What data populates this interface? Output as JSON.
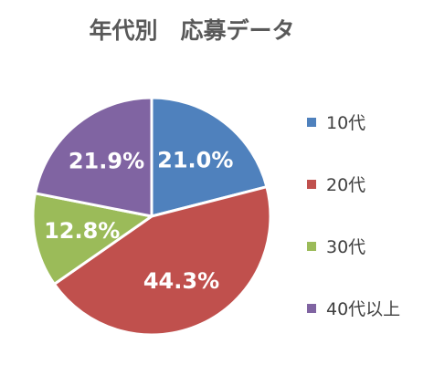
{
  "chart_data": {
    "type": "pie",
    "title": "年代別　応募データ",
    "categories": [
      "10代",
      "20代",
      "30代",
      "40代以上"
    ],
    "values": [
      21.0,
      44.3,
      12.8,
      21.9
    ],
    "labels": [
      "21.0%",
      "44.3%",
      "12.8%",
      "21.9%"
    ],
    "colors": [
      "#4f81bd",
      "#c0504d",
      "#9bbb59",
      "#8064a2"
    ],
    "legend": "right"
  }
}
